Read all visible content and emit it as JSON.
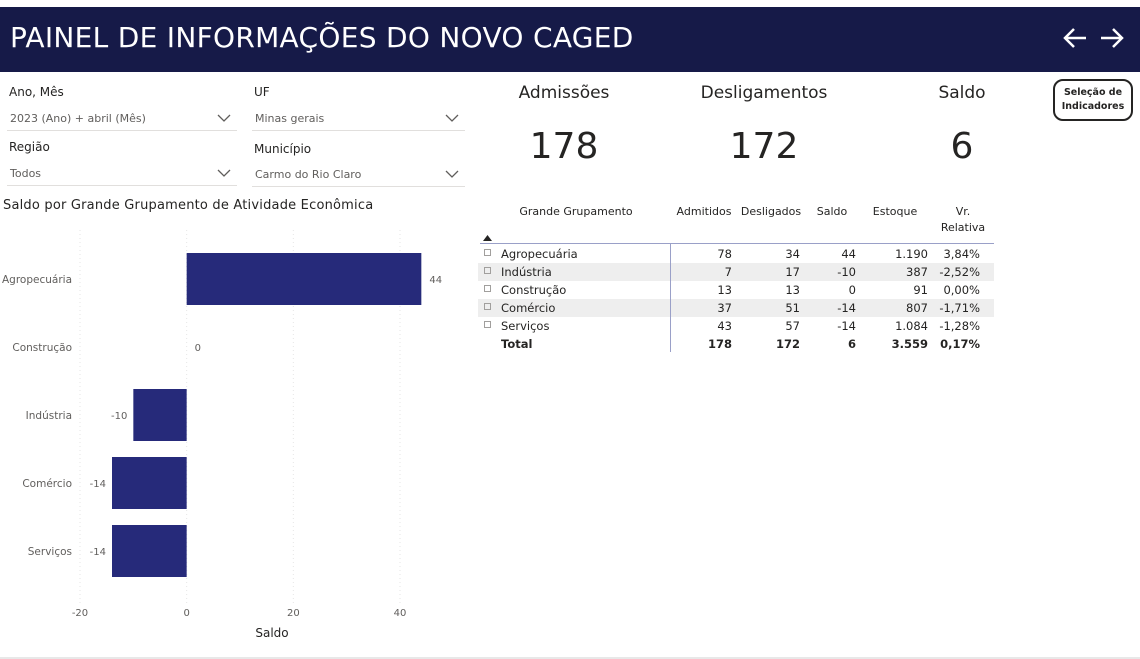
{
  "header": {
    "title": "PAINEL DE INFORMAÇÕES DO NOVO CAGED"
  },
  "filters": {
    "ano_mes": {
      "label": "Ano, Mês",
      "value": "2023 (Ano) + abril (Mês)"
    },
    "uf": {
      "label": "UF",
      "value": "Minas gerais"
    },
    "regiao": {
      "label": "Região",
      "value": "Todos"
    },
    "municipio": {
      "label": "Município",
      "value": "Carmo do Rio Claro"
    }
  },
  "kpis": {
    "admissoes": {
      "label": "Admissões",
      "value": "178"
    },
    "desligamentos": {
      "label": "Desligamentos",
      "value": "172"
    },
    "saldo": {
      "label": "Saldo",
      "value": "6"
    }
  },
  "selection_button": {
    "line1": "Seleção de",
    "line2": "Indicadores"
  },
  "matrix": {
    "headers": {
      "grupo": "Grande Grupamento",
      "admitidos": "Admitidos",
      "desligados": "Desligados",
      "saldo": "Saldo",
      "estoque": "Estoque",
      "vr1": "Vr.",
      "vr2": "Relativa"
    },
    "rows": [
      {
        "name": "Agropecuária",
        "admitidos": "78",
        "desligados": "34",
        "saldo": "44",
        "estoque": "1.190",
        "vr": "3,84%"
      },
      {
        "name": "Indústria",
        "admitidos": "7",
        "desligados": "17",
        "saldo": "-10",
        "estoque": "387",
        "vr": "-2,52%"
      },
      {
        "name": "Construção",
        "admitidos": "13",
        "desligados": "13",
        "saldo": "0",
        "estoque": "91",
        "vr": "0,00%"
      },
      {
        "name": "Comércio",
        "admitidos": "37",
        "desligados": "51",
        "saldo": "-14",
        "estoque": "807",
        "vr": "-1,71%"
      },
      {
        "name": "Serviços",
        "admitidos": "43",
        "desligados": "57",
        "saldo": "-14",
        "estoque": "1.084",
        "vr": "-1,28%"
      }
    ],
    "total": {
      "name": "Total",
      "admitidos": "178",
      "desligados": "172",
      "saldo": "6",
      "estoque": "3.559",
      "vr": "0,17%"
    }
  },
  "chart_data": {
    "type": "bar",
    "orientation": "horizontal",
    "title": "Saldo por Grande Grupamento de Atividade Econômica",
    "categories": [
      "Agropecuária",
      "Construção",
      "Indústria",
      "Comércio",
      "Serviços"
    ],
    "values": [
      44,
      0,
      -10,
      -14,
      -14
    ],
    "data_labels": [
      "44",
      "0",
      "-10",
      "-14",
      "-14"
    ],
    "xlabel": "Saldo",
    "ylabel": "",
    "xlim": [
      -20,
      48
    ],
    "xticks": [
      -20,
      0,
      20,
      40
    ],
    "xtick_labels": [
      "-20",
      "0",
      "20",
      "40"
    ],
    "grid": true,
    "bar_color": "#262a7a"
  }
}
